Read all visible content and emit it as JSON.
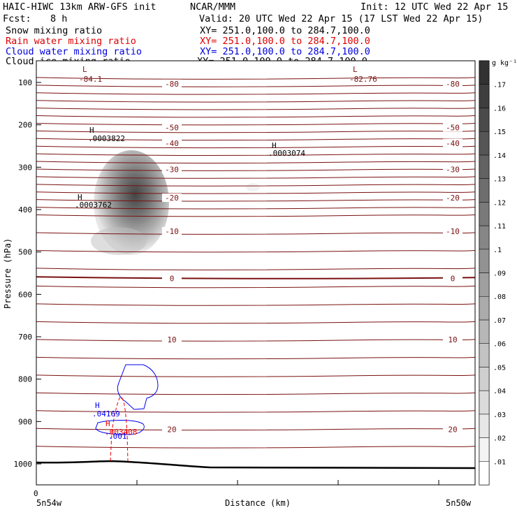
{
  "header": {
    "left_title": "HAIC-HIWC 13km ARW-GFS init",
    "org": "NCAR/MMM",
    "init": "Init: 12 UTC Wed 22 Apr 15",
    "fcst_label": "Fcst:",
    "fcst_value": "8 h",
    "valid": "Valid: 20 UTC Wed 22 Apr 15 (17 LST Wed 22 Apr 15)"
  },
  "fields": [
    {
      "name": "Snow mixing ratio",
      "xy": "XY= 251.0,100.0 to 284.7,100.0",
      "color": "#000000"
    },
    {
      "name": "Rain water mixing ratio",
      "xy": "XY= 251.0,100.0 to 284.7,100.0",
      "color": "#ff0000"
    },
    {
      "name": "Cloud water mixing ratio",
      "xy": "XY= 251.0,100.0 to 284.7,100.0",
      "color": "#0000ff"
    },
    {
      "name": "Cloud ice mixing ratio",
      "xy": "XY= 251.0,100.0 to 284.7,100.0",
      "color": "#000000"
    }
  ],
  "chart_data": {
    "type": "heatmap",
    "xlabel": "Distance (km)",
    "ylabel": "Pressure (hPa)",
    "x_tick_labels": [
      "0"
    ],
    "x_endpoints": [
      "5n54w",
      "5n50w"
    ],
    "y_ticks": [
      100,
      200,
      300,
      400,
      500,
      600,
      700,
      800,
      900,
      1000
    ],
    "colorbar": {
      "unit": "g kg⁻¹",
      "levels": [
        0.01,
        0.02,
        0.03,
        0.04,
        0.05,
        0.06,
        0.07,
        0.08,
        0.09,
        0.1,
        0.11,
        0.12,
        0.13,
        0.14,
        0.15,
        0.16,
        0.17
      ],
      "labels": [
        ".01",
        ".02",
        ".03",
        ".04",
        ".05",
        ".06",
        ".07",
        ".08",
        ".09",
        ".1",
        ".11",
        ".12",
        ".13",
        ".14",
        ".15",
        ".16",
        ".17"
      ]
    },
    "temperature_contours": {
      "color": "#7a1010",
      "labeled": [
        {
          "value": "-80",
          "p": 103
        },
        {
          "value": "-50",
          "p": 206
        },
        {
          "value": "-40",
          "p": 243
        },
        {
          "value": "-30",
          "p": 305
        },
        {
          "value": "-20",
          "p": 372
        },
        {
          "value": "-10",
          "p": 451
        },
        {
          "value": "0",
          "p": 562
        },
        {
          "value": "10",
          "p": 707
        },
        {
          "value": "20",
          "p": 918
        }
      ]
    },
    "annotations": [
      {
        "kind": "L",
        "value": "-84.1"
      },
      {
        "kind": "L",
        "value": "-82.76"
      },
      {
        "kind": "H",
        "value": ".0003822"
      },
      {
        "kind": "H",
        "value": ".0003074"
      },
      {
        "kind": "H",
        "value": ".0003762"
      },
      {
        "kind": "H",
        "value": ".04169"
      },
      {
        "kind": "H",
        "value": ".003408"
      },
      {
        "kind": "value",
        "value": ".001"
      }
    ]
  }
}
